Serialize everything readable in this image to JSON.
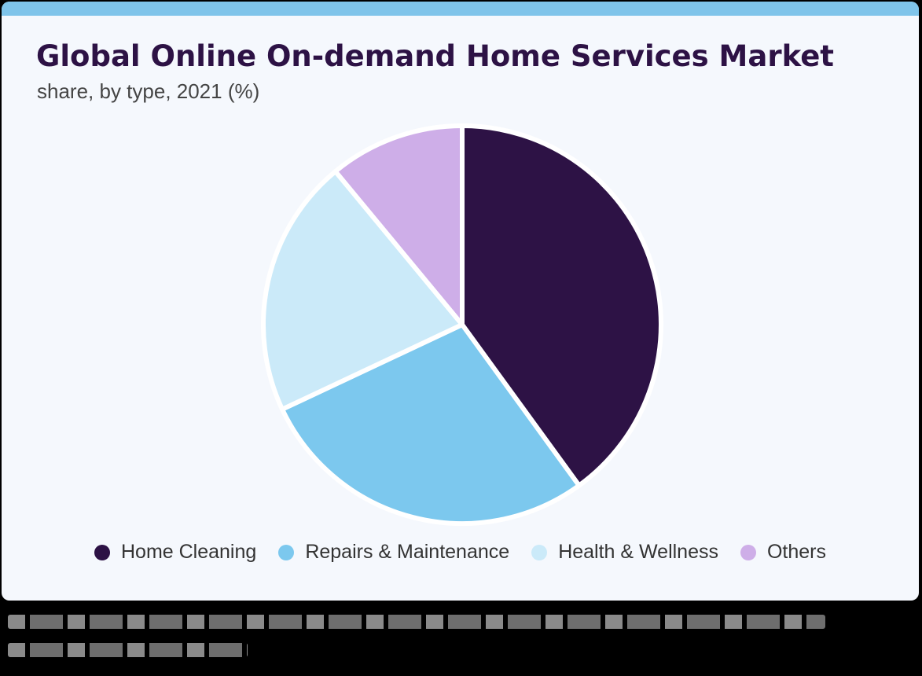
{
  "chart_data": {
    "type": "pie",
    "title": "Global Online On-demand Home Services Market",
    "subtitle": "share, by type, 2021 (%)",
    "legend_position": "bottom",
    "series": [
      {
        "name": "Home Cleaning",
        "value": 40,
        "color": "#2d1245"
      },
      {
        "name": "Repairs & Maintenance",
        "value": 28,
        "color": "#7cc8ee"
      },
      {
        "name": "Health & Wellness",
        "value": 21,
        "color": "#cbeaf9"
      },
      {
        "name": "Others",
        "value": 11,
        "color": "#ceaee8"
      }
    ]
  },
  "colors": {
    "top_bar": "#7fc4ea",
    "card_background": "#f5f8fd",
    "title": "#2d1245"
  }
}
